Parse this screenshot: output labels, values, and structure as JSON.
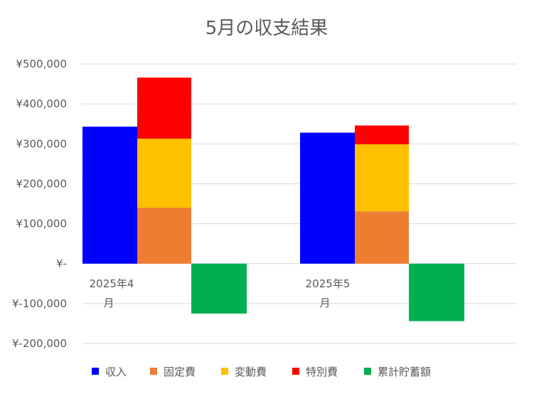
{
  "chart_data": {
    "type": "bar",
    "title": "5月の収支結果",
    "categories": [
      [
        "2025年4",
        "月"
      ],
      [
        "2025年5",
        "月"
      ]
    ],
    "y_tick_labels": [
      "¥500,000",
      "¥400,000",
      "¥300,000",
      "¥200,000",
      "¥100,000",
      "¥-",
      "¥-100,000",
      "¥-200,000"
    ],
    "ylim": [
      -200000,
      500000
    ],
    "y_tick_values": [
      500000,
      400000,
      300000,
      200000,
      100000,
      0,
      -100000,
      -200000
    ],
    "grid": true,
    "legend_position": "bottom",
    "series": [
      {
        "name": "収入",
        "color": "#0000FF",
        "values": [
          343000,
          328000
        ],
        "stack": "income"
      },
      {
        "name": "固定費",
        "color": "#ED7D31",
        "values": [
          140000,
          131000
        ],
        "stack": "expense"
      },
      {
        "name": "変動費",
        "color": "#FFC000",
        "values": [
          173000,
          168000
        ],
        "stack": "expense"
      },
      {
        "name": "特別費",
        "color": "#FF0000",
        "values": [
          153000,
          47000
        ],
        "stack": "expense"
      },
      {
        "name": "累計貯蓄額",
        "color": "#00B050",
        "values": [
          -125000,
          -144000
        ],
        "stack": "savings"
      }
    ]
  }
}
